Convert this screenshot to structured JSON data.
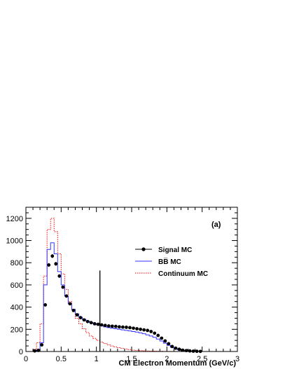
{
  "chart_data": {
    "type": "histogram",
    "panel_label": "(a)",
    "xlabel": "CM Electron Momentum (GeV/c)",
    "ylabel": "",
    "xlim": [
      0,
      3
    ],
    "ylim": [
      0,
      1300
    ],
    "x_ticks": [
      "0",
      "0.5",
      "1",
      "1.5",
      "2",
      "2.5",
      "3"
    ],
    "y_ticks": [
      "0",
      "200",
      "400",
      "600",
      "800",
      "1000",
      "1200"
    ],
    "bin_width": 0.05,
    "cut_line": {
      "x": 1.05,
      "y_top": 730
    },
    "legend": [
      {
        "name": "Signal MC",
        "style": "markers",
        "color": "#000000"
      },
      {
        "name": "BB̅ MC",
        "style": "solid",
        "color": "#3333ff"
      },
      {
        "name": "Continuum MC",
        "style": "dotted",
        "color": "#ff0000"
      }
    ],
    "series": [
      {
        "name": "Signal MC",
        "x": [
          0.125,
          0.175,
          0.225,
          0.275,
          0.325,
          0.375,
          0.425,
          0.475,
          0.525,
          0.575,
          0.625,
          0.675,
          0.725,
          0.775,
          0.825,
          0.875,
          0.925,
          0.975,
          1.025,
          1.075,
          1.125,
          1.175,
          1.225,
          1.275,
          1.325,
          1.375,
          1.425,
          1.475,
          1.525,
          1.575,
          1.625,
          1.675,
          1.725,
          1.775,
          1.825,
          1.875,
          1.925,
          1.975,
          2.025,
          2.075,
          2.125,
          2.175,
          2.225,
          2.275,
          2.325,
          2.375,
          2.425,
          2.475
        ],
        "values": [
          5,
          10,
          60,
          420,
          780,
          860,
          790,
          680,
          580,
          500,
          430,
          370,
          330,
          305,
          285,
          270,
          260,
          250,
          245,
          240,
          235,
          230,
          228,
          226,
          222,
          220,
          218,
          215,
          210,
          205,
          200,
          195,
          190,
          180,
          165,
          145,
          120,
          95,
          70,
          45,
          30,
          20,
          12,
          8,
          5,
          3,
          2,
          1
        ]
      },
      {
        "name": "BB̅ MC",
        "x": [
          0.125,
          0.175,
          0.225,
          0.275,
          0.325,
          0.375,
          0.425,
          0.475,
          0.525,
          0.575,
          0.625,
          0.675,
          0.725,
          0.775,
          0.825,
          0.875,
          0.925,
          0.975,
          1.025,
          1.075,
          1.125,
          1.175,
          1.225,
          1.275,
          1.325,
          1.375,
          1.425,
          1.475,
          1.525,
          1.575,
          1.625,
          1.675,
          1.725,
          1.775,
          1.825,
          1.875,
          1.925,
          1.975,
          2.025,
          2.075,
          2.125,
          2.175,
          2.225,
          2.275,
          2.325,
          2.375,
          2.425,
          2.475
        ],
        "values": [
          5,
          15,
          80,
          600,
          920,
          980,
          880,
          720,
          600,
          500,
          430,
          380,
          340,
          310,
          290,
          275,
          262,
          252,
          240,
          232,
          222,
          215,
          210,
          205,
          200,
          195,
          190,
          185,
          180,
          175,
          168,
          160,
          150,
          140,
          128,
          112,
          95,
          75,
          55,
          38,
          25,
          15,
          10,
          6,
          4,
          3,
          2,
          1
        ]
      },
      {
        "name": "Continuum MC",
        "x": [
          0.125,
          0.175,
          0.225,
          0.275,
          0.325,
          0.375,
          0.425,
          0.475,
          0.525,
          0.575,
          0.625,
          0.675,
          0.725,
          0.775,
          0.825,
          0.875,
          0.925,
          0.975,
          1.025,
          1.075,
          1.125,
          1.175,
          1.225,
          1.275,
          1.325,
          1.375,
          1.425,
          1.475,
          1.525,
          1.575,
          1.625,
          1.675,
          1.725,
          1.775,
          1.825,
          1.875,
          1.925,
          1.975,
          2.025,
          2.075,
          2.125,
          2.175,
          2.225,
          2.275,
          2.325,
          2.375,
          2.425,
          2.475
        ],
        "values": [
          20,
          80,
          250,
          680,
          1100,
          1200,
          1080,
          880,
          700,
          560,
          450,
          370,
          300,
          250,
          205,
          170,
          140,
          118,
          100,
          85,
          72,
          60,
          50,
          42,
          35,
          28,
          22,
          17,
          13,
          10,
          8,
          6,
          5,
          4,
          3,
          2,
          2,
          1,
          1,
          1,
          0,
          0,
          0,
          0,
          0,
          0,
          0,
          0
        ]
      }
    ]
  }
}
